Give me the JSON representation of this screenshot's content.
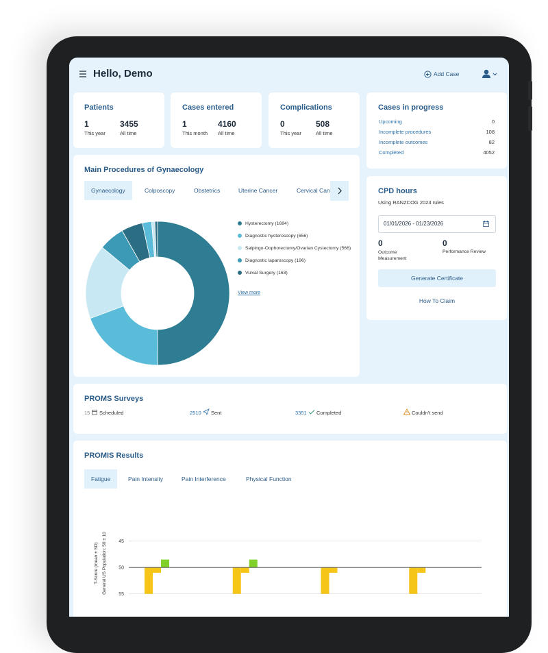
{
  "header": {
    "title": "Hello, Demo",
    "add_case": "Add Case"
  },
  "stats": [
    {
      "title": "Patients",
      "items": [
        {
          "value": 1,
          "label": "This year"
        },
        {
          "value": 3455,
          "label": "All time"
        }
      ]
    },
    {
      "title": "Cases entered",
      "items": [
        {
          "value": 1,
          "label": "This month"
        },
        {
          "value": 4160,
          "label": "All time"
        }
      ]
    },
    {
      "title": "Complications",
      "items": [
        {
          "value": 0,
          "label": "This year"
        },
        {
          "value": 508,
          "label": "All time"
        }
      ]
    }
  ],
  "cases_in_progress": {
    "title": "Cases in progress",
    "rows": [
      {
        "label": "Upcoming",
        "value": 0
      },
      {
        "label": "Incomplete procedures",
        "value": 108
      },
      {
        "label": "Incomplete outcomes",
        "value": 82
      },
      {
        "label": "Completed",
        "value": 4052
      }
    ]
  },
  "procedures": {
    "title": "Main Procedures of Gynaecology",
    "tabs": [
      "Gynaecology",
      "Colposcopy",
      "Obstetrics",
      "Uterine Cancer",
      "Cervical Cancer"
    ],
    "view_more": "View more"
  },
  "cpd": {
    "title": "CPD hours",
    "subtitle": "Using RANZCOG 2024 rules",
    "date_range": "01/01/2026 - 01/23/2026",
    "stats": [
      {
        "value": 0,
        "label": "Outcome Measurement"
      },
      {
        "value": 0,
        "label": "Performance Review"
      }
    ],
    "button": "Generate Certificate",
    "link": "How To Claim"
  },
  "proms": {
    "title": "PROMS Surveys",
    "items": [
      {
        "value": 15,
        "label": "Scheduled"
      },
      {
        "value": 2510,
        "label": "Sent"
      },
      {
        "value": 3351,
        "label": "Completed"
      },
      {
        "label": "Couldn't send"
      }
    ]
  },
  "promis": {
    "title": "PROMIS Results",
    "tabs": [
      "Fatigue",
      "Pain Intensity",
      "Pain Interference",
      "Physical Function"
    ]
  },
  "chart_data": [
    {
      "type": "donut",
      "categories": [
        "Hysterectomy (1694)",
        "Diagnostic hysteroscopy (656)",
        "Salpingo-Oophorectomy/Ovarian Cystectomy (566)",
        "Diagnostic laparoscopy (196)",
        "Vulval Surgery (163)",
        null,
        null,
        null
      ],
      "values": [
        1694,
        656,
        566,
        196,
        163,
        70,
        25,
        20
      ],
      "colors": [
        "#2e7d93",
        "#5bbcd9",
        "#c8e8f3",
        "#3c9ab6",
        "#2b6d82",
        "#5bbcd9",
        "#c8e8f3",
        "#2b6d82"
      ]
    },
    {
      "type": "bar",
      "ylabel": "T-Score (mean ± SD)",
      "ylabel_sub": "General US Population: 50 ± 10",
      "categories": [
        null,
        null,
        null,
        null
      ],
      "baseline": 50,
      "inverted": true,
      "ylim": [
        44,
        61
      ],
      "yticks": [
        45,
        50,
        55,
        60
      ],
      "grid": true,
      "series": [
        {
          "color": "#f5c518",
          "values": [
            55,
            55,
            55,
            55
          ]
        },
        {
          "color": "#f5c518",
          "values": [
            51,
            51,
            51,
            51
          ]
        },
        {
          "color": "#82d02a",
          "values": [
            48.5,
            48.5,
            null,
            null
          ]
        }
      ]
    }
  ]
}
